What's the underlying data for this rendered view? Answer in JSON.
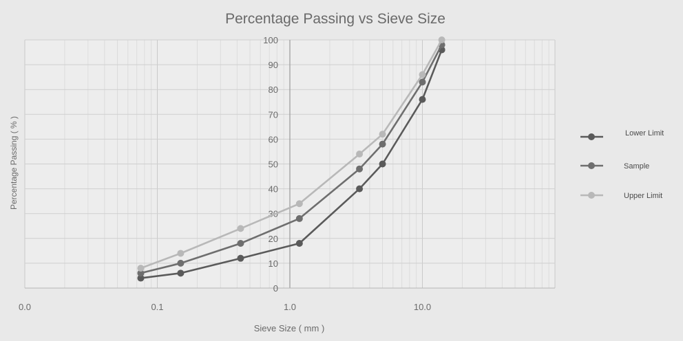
{
  "chart_data": {
    "type": "line",
    "title": "Percentage Passing vs Sieve Size",
    "xlabel": "Sieve Size ( mm )",
    "ylabel": "Percentage Passing ( % )",
    "x_scale": "log",
    "xlim": [
      0.01,
      100
    ],
    "ylim": [
      0,
      100
    ],
    "x_ticks": [
      {
        "value": 0.01,
        "label": "0.0"
      },
      {
        "value": 0.1,
        "label": "0.1"
      },
      {
        "value": 1,
        "label": "1.0"
      },
      {
        "value": 10,
        "label": "10.0"
      }
    ],
    "y_ticks": [
      0,
      10,
      20,
      30,
      40,
      50,
      60,
      70,
      80,
      90,
      100
    ],
    "grid": true,
    "legend_position": "right",
    "x": [
      0.075,
      0.15,
      0.425,
      1.18,
      3.35,
      5.0,
      10.0,
      14.0
    ],
    "series": [
      {
        "name": "Lower Limit",
        "color": "#5a5a5a",
        "values": [
          4,
          6,
          12,
          18,
          40,
          50,
          76,
          96
        ]
      },
      {
        "name": "Sample",
        "color": "#6e6e6e",
        "values": [
          6,
          10,
          18,
          28,
          48,
          58,
          83,
          98
        ]
      },
      {
        "name": "Upper Limit",
        "color": "#b8b8b8",
        "values": [
          8,
          14,
          24,
          34,
          54,
          62,
          86,
          100
        ]
      }
    ]
  }
}
